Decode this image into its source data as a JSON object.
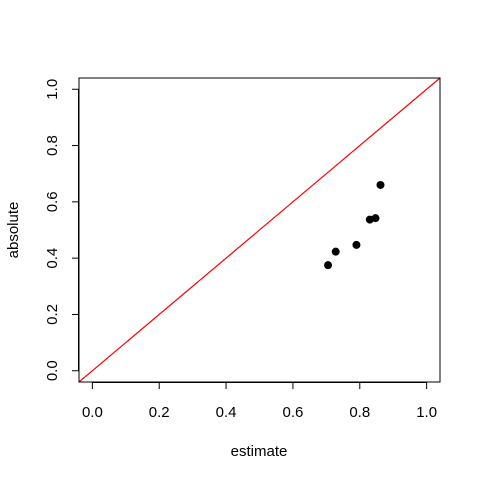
{
  "chart_data": {
    "type": "scatter",
    "title": "",
    "xlabel": "estimate",
    "ylabel": "absolute",
    "xlim": [
      -0.04,
      1.04
    ],
    "ylim": [
      -0.04,
      1.04
    ],
    "xticks": [
      "0.0",
      "0.2",
      "0.4",
      "0.6",
      "0.8",
      "1.0"
    ],
    "yticks": [
      "0.0",
      "0.2",
      "0.4",
      "0.6",
      "0.8",
      "1.0"
    ],
    "grid": false,
    "legend": "none",
    "series": [
      {
        "x": [
          0.705,
          0.728,
          0.79,
          0.83,
          0.847,
          0.862
        ],
        "y": [
          0.375,
          0.423,
          0.447,
          0.537,
          0.542,
          0.66
        ],
        "color": "#000000",
        "marker": "filled-circle"
      }
    ],
    "reference_line": {
      "type": "identity",
      "points": [
        [
          -0.04,
          -0.04
        ],
        [
          1.04,
          1.04
        ]
      ],
      "color": "#ff0000"
    }
  }
}
